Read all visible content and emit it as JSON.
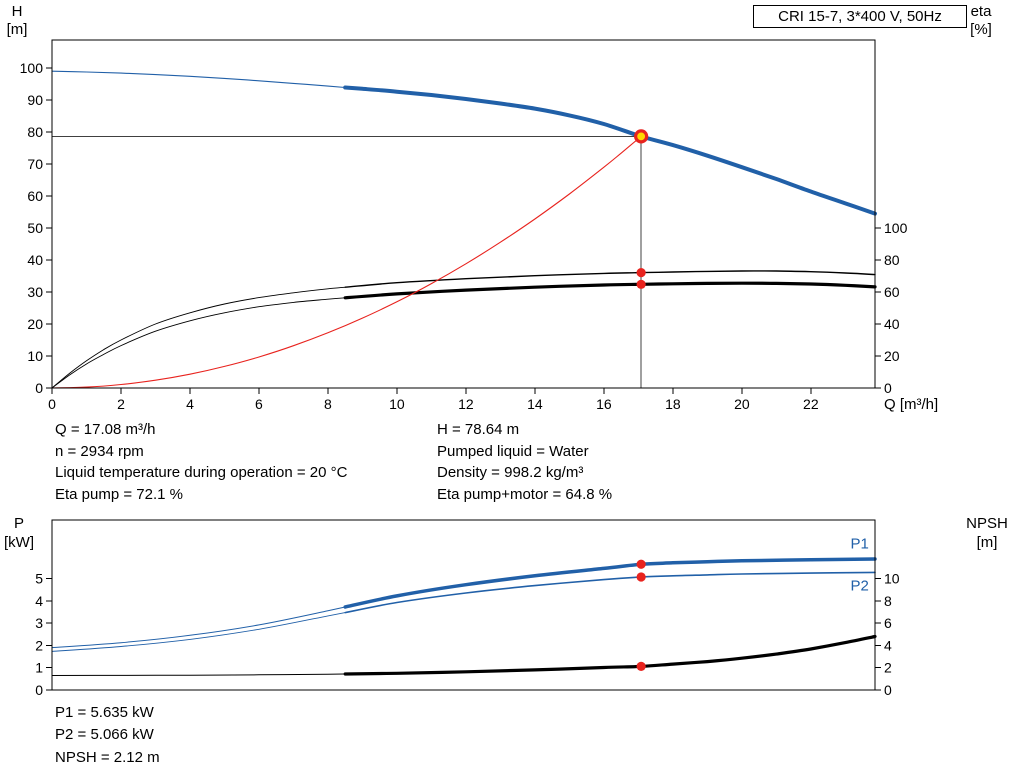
{
  "title_box": "CRI 15-7, 3*400 V, 50Hz",
  "info_top_left": [
    "Q = 17.08 m³/h",
    "n = 2934 rpm",
    "Liquid temperature during operation = 20 °C",
    "Eta pump = 72.1 %"
  ],
  "info_top_right": [
    "H = 78.64 m",
    "Pumped liquid = Water",
    "Density = 998.2 kg/m³",
    "Eta pump+motor = 64.8 %"
  ],
  "info_bottom": [
    "P1 = 5.635 kW",
    "P2 = 5.066 kW",
    "NPSH = 2.12 m"
  ],
  "colors": {
    "blue": "#2160a8",
    "red": "#e8231e",
    "duty_fill": "#ffd800",
    "ref": "#404040",
    "black": "#000000"
  },
  "chart_data": [
    {
      "id": "head-flow-chart",
      "type": "line",
      "title": "CRI 15-7, 3*400 V, 50Hz",
      "x": {
        "label": "Q [m³/h]",
        "min": 0,
        "max": 23.86,
        "ticks": [
          0,
          2,
          4,
          6,
          8,
          10,
          12,
          14,
          16,
          18,
          20,
          22
        ]
      },
      "left": {
        "label": [
          "H",
          "[m]"
        ],
        "min": 0,
        "max": 108.75,
        "ticks": [
          0,
          10,
          20,
          30,
          40,
          50,
          60,
          70,
          80,
          90,
          100
        ]
      },
      "right": {
        "label": [
          "eta",
          "[%]"
        ],
        "min": 0,
        "max": 217.5,
        "ticks": [
          0,
          20,
          40,
          60,
          80,
          100
        ]
      },
      "series": [
        {
          "id": "qh-curve",
          "name": "H (head)",
          "axis": "left",
          "color": "blue",
          "split": 8.5,
          "w1": 1.1,
          "w2": 4,
          "points": [
            [
              0,
              99
            ],
            [
              1,
              98.75
            ],
            [
              2,
              98.4
            ],
            [
              3,
              97.95
            ],
            [
              4,
              97.4
            ],
            [
              5,
              96.75
            ],
            [
              6,
              96.0
            ],
            [
              7,
              95.2
            ],
            [
              8,
              94.35
            ],
            [
              8.5,
              93.9
            ],
            [
              9,
              93.5
            ],
            [
              10,
              92.6
            ],
            [
              11,
              91.55
            ],
            [
              12,
              90.3
            ],
            [
              13,
              88.9
            ],
            [
              14,
              87.3
            ],
            [
              15,
              85.2
            ],
            [
              16,
              82.5
            ],
            [
              17.08,
              78.64
            ],
            [
              18,
              75.9
            ],
            [
              19,
              72.6
            ],
            [
              20,
              69.0
            ],
            [
              21,
              65.3
            ],
            [
              22,
              61.4
            ],
            [
              23,
              57.7
            ],
            [
              23.86,
              54.5
            ]
          ]
        },
        {
          "id": "eta-pump-curve",
          "name": "Eta pump",
          "axis": "right",
          "color": "black",
          "split": 8.5,
          "w1": 0.9,
          "w2": 1.4,
          "points": [
            [
              0,
              0
            ],
            [
              0.5,
              9
            ],
            [
              1,
              17
            ],
            [
              1.5,
              24
            ],
            [
              2,
              30
            ],
            [
              3,
              40
            ],
            [
              4,
              47
            ],
            [
              5,
              52.5
            ],
            [
              6,
              56.5
            ],
            [
              7,
              59.5
            ],
            [
              8,
              62
            ],
            [
              8.5,
              63
            ],
            [
              10,
              65.8
            ],
            [
              12,
              68.3
            ],
            [
              14,
              70.2
            ],
            [
              16,
              71.6
            ],
            [
              17.08,
              72.1
            ],
            [
              18,
              72.5
            ],
            [
              19,
              72.9
            ],
            [
              20,
              73.1
            ],
            [
              21,
              73.1
            ],
            [
              22,
              72.7
            ],
            [
              23,
              71.9
            ],
            [
              23.86,
              70.9
            ]
          ]
        },
        {
          "id": "eta-pump-motor-curve",
          "name": "Eta pump+motor",
          "axis": "right",
          "color": "black",
          "split": 8.5,
          "w1": 0.9,
          "w2": 3.2,
          "points": [
            [
              0,
              0
            ],
            [
              0.5,
              8
            ],
            [
              1,
              15
            ],
            [
              1.5,
              21
            ],
            [
              2,
              26.5
            ],
            [
              3,
              35.5
            ],
            [
              4,
              42
            ],
            [
              5,
              47
            ],
            [
              6,
              50.8
            ],
            [
              7,
              53.5
            ],
            [
              8,
              55.5
            ],
            [
              8.5,
              56.4
            ],
            [
              10,
              58.8
            ],
            [
              12,
              61.2
            ],
            [
              14,
              63
            ],
            [
              16,
              64.4
            ],
            [
              17.08,
              64.8
            ],
            [
              18,
              65.1
            ],
            [
              19,
              65.4
            ],
            [
              20,
              65.5
            ],
            [
              21,
              65.4
            ],
            [
              22,
              65.0
            ],
            [
              23,
              64.2
            ],
            [
              23.86,
              63.2
            ]
          ]
        },
        {
          "id": "system-curve",
          "name": "Duty system curve",
          "axis": "left",
          "color": "red",
          "split": 99,
          "w1": 1.1,
          "w2": 1.1,
          "points": [
            [
              0,
              0
            ],
            [
              1,
              0.27
            ],
            [
              2,
              1.08
            ],
            [
              3,
              2.43
            ],
            [
              4,
              4.31
            ],
            [
              5,
              6.74
            ],
            [
              6,
              9.7
            ],
            [
              7,
              13.21
            ],
            [
              8,
              17.25
            ],
            [
              9,
              21.83
            ],
            [
              10,
              26.95
            ],
            [
              11,
              32.61
            ],
            [
              12,
              38.81
            ],
            [
              13,
              45.55
            ],
            [
              14,
              52.82
            ],
            [
              15,
              60.64
            ],
            [
              16,
              68.99
            ],
            [
              16.5,
              73.38
            ],
            [
              17.08,
              78.64
            ]
          ]
        }
      ],
      "ref_lines": [
        {
          "dir": "h",
          "axis": "left",
          "v": 78.64,
          "q1": 0,
          "q2": 17.08
        },
        {
          "dir": "v",
          "axis": "left",
          "q": 17.08,
          "v1": 0,
          "v2": 78.64
        }
      ],
      "markers": [
        {
          "style": "duty",
          "axis": "left",
          "q": 17.08,
          "v": 78.64
        },
        {
          "style": "dot",
          "axis": "right",
          "q": 17.08,
          "v": 72.1
        },
        {
          "style": "dot",
          "axis": "right",
          "q": 17.08,
          "v": 64.8
        }
      ]
    },
    {
      "id": "power-npsh-chart",
      "type": "line",
      "x": {
        "label": "",
        "min": 0,
        "max": 23.86,
        "ticks": []
      },
      "left": {
        "label": [
          "P",
          "[kW]"
        ],
        "min": 0,
        "max": 7.62,
        "ticks": [
          0,
          1,
          2,
          3,
          4,
          5
        ]
      },
      "right": {
        "label": [
          "NPSH",
          "[m]"
        ],
        "min": 0,
        "max": 15.24,
        "ticks": [
          0,
          2,
          4,
          6,
          8,
          10
        ]
      },
      "series": [
        {
          "id": "p1-curve",
          "name": "P1",
          "axis": "left",
          "color": "blue",
          "split": 8.5,
          "w1": 1.0,
          "w2": 3.5,
          "points": [
            [
              0,
              1.9
            ],
            [
              2,
              2.12
            ],
            [
              4,
              2.45
            ],
            [
              6,
              2.92
            ],
            [
              8,
              3.55
            ],
            [
              8.5,
              3.72
            ],
            [
              10,
              4.22
            ],
            [
              12,
              4.72
            ],
            [
              14,
              5.12
            ],
            [
              16,
              5.45
            ],
            [
              17.08,
              5.635
            ],
            [
              18,
              5.7
            ],
            [
              19,
              5.75
            ],
            [
              20,
              5.79
            ],
            [
              22,
              5.84
            ],
            [
              23.86,
              5.87
            ]
          ]
        },
        {
          "id": "p2-curve",
          "name": "P2",
          "axis": "left",
          "color": "blue",
          "split": 8.5,
          "w1": 0.9,
          "w2": 1.6,
          "points": [
            [
              0,
              1.73
            ],
            [
              2,
              1.95
            ],
            [
              4,
              2.27
            ],
            [
              6,
              2.72
            ],
            [
              8,
              3.32
            ],
            [
              8.5,
              3.47
            ],
            [
              10,
              3.92
            ],
            [
              12,
              4.35
            ],
            [
              14,
              4.68
            ],
            [
              16,
              4.95
            ],
            [
              17.08,
              5.066
            ],
            [
              18,
              5.12
            ],
            [
              19,
              5.16
            ],
            [
              20,
              5.2
            ],
            [
              22,
              5.24
            ],
            [
              23.86,
              5.27
            ]
          ]
        },
        {
          "id": "npsh-curve",
          "name": "NPSH",
          "axis": "right",
          "color": "black",
          "split": 8.5,
          "w1": 1.0,
          "w2": 3.2,
          "points": [
            [
              0,
              1.3
            ],
            [
              2,
              1.31
            ],
            [
              4,
              1.33
            ],
            [
              6,
              1.36
            ],
            [
              8,
              1.41
            ],
            [
              8.5,
              1.43
            ],
            [
              10,
              1.5
            ],
            [
              12,
              1.63
            ],
            [
              14,
              1.8
            ],
            [
              16,
              2.02
            ],
            [
              17.08,
              2.12
            ],
            [
              18,
              2.32
            ],
            [
              19,
              2.55
            ],
            [
              20,
              2.85
            ],
            [
              21,
              3.22
            ],
            [
              22,
              3.68
            ],
            [
              23,
              4.25
            ],
            [
              23.86,
              4.8
            ]
          ]
        }
      ],
      "labels": [
        {
          "text": "P1",
          "q": 23.15,
          "v": 6.35,
          "axis": "left",
          "color": "blue"
        },
        {
          "text": "P2",
          "q": 23.15,
          "v": 4.45,
          "axis": "left",
          "color": "blue"
        }
      ],
      "markers": [
        {
          "style": "dot",
          "axis": "left",
          "q": 17.08,
          "v": 5.635
        },
        {
          "style": "dot",
          "axis": "left",
          "q": 17.08,
          "v": 5.066
        },
        {
          "style": "dot",
          "axis": "right",
          "q": 17.08,
          "v": 2.12
        }
      ]
    }
  ]
}
